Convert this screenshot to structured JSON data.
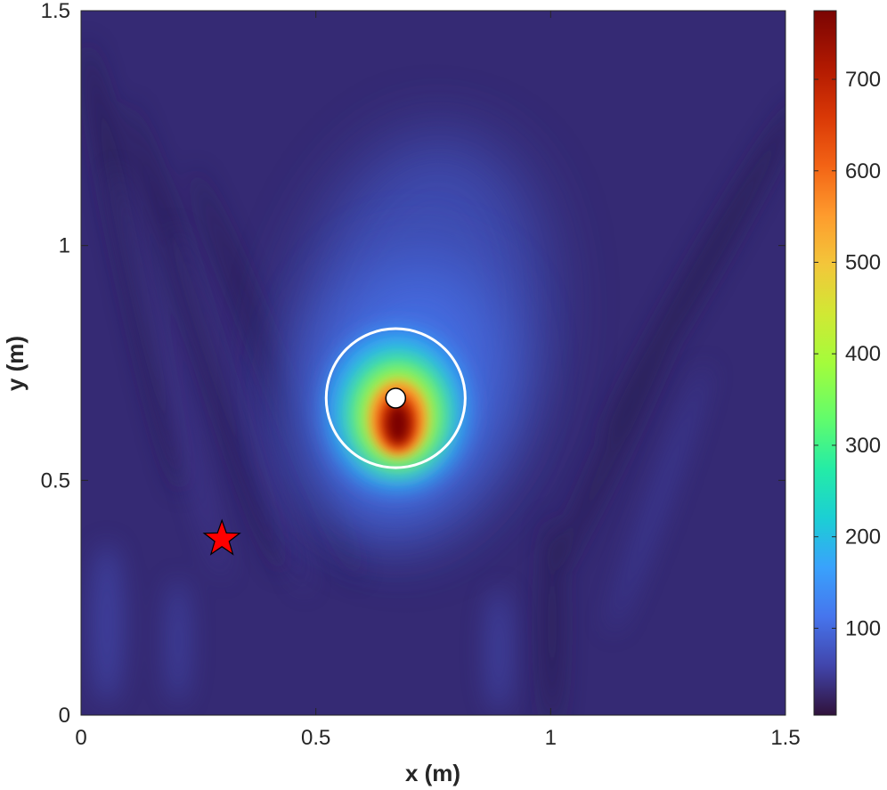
{
  "chart_data": {
    "type": "heatmap",
    "title": "",
    "xlabel": "x (m)",
    "ylabel": "y (m)",
    "xlim": [
      0,
      1.5
    ],
    "ylim": [
      0,
      1.5
    ],
    "x_ticks": [
      0,
      0.5,
      1,
      1.5
    ],
    "x_tick_labels": [
      "0",
      "0.5",
      "1",
      "1.5"
    ],
    "y_ticks": [
      0,
      0.5,
      1,
      1.5
    ],
    "y_tick_labels": [
      "0",
      "0.5",
      "1",
      "1.5"
    ],
    "colormap": "turbo",
    "colorbar": {
      "range": [
        5,
        775
      ],
      "ticks": [
        100,
        200,
        300,
        400,
        500,
        600,
        700
      ],
      "tick_labels": [
        "100",
        "200",
        "300",
        "400",
        "500",
        "600",
        "700"
      ],
      "location": "right"
    },
    "peak": {
      "x": 0.67,
      "y": 0.6,
      "value": 775
    },
    "markers": [
      {
        "kind": "star",
        "x": 0.3,
        "y": 0.375,
        "color": "#ff0000"
      },
      {
        "kind": "dot",
        "x": 0.67,
        "y": 0.675,
        "color": "#ffffff"
      },
      {
        "kind": "circle",
        "x": 0.67,
        "y": 0.675,
        "radius": 0.148,
        "color": "#ffffff"
      }
    ],
    "grid": false
  }
}
